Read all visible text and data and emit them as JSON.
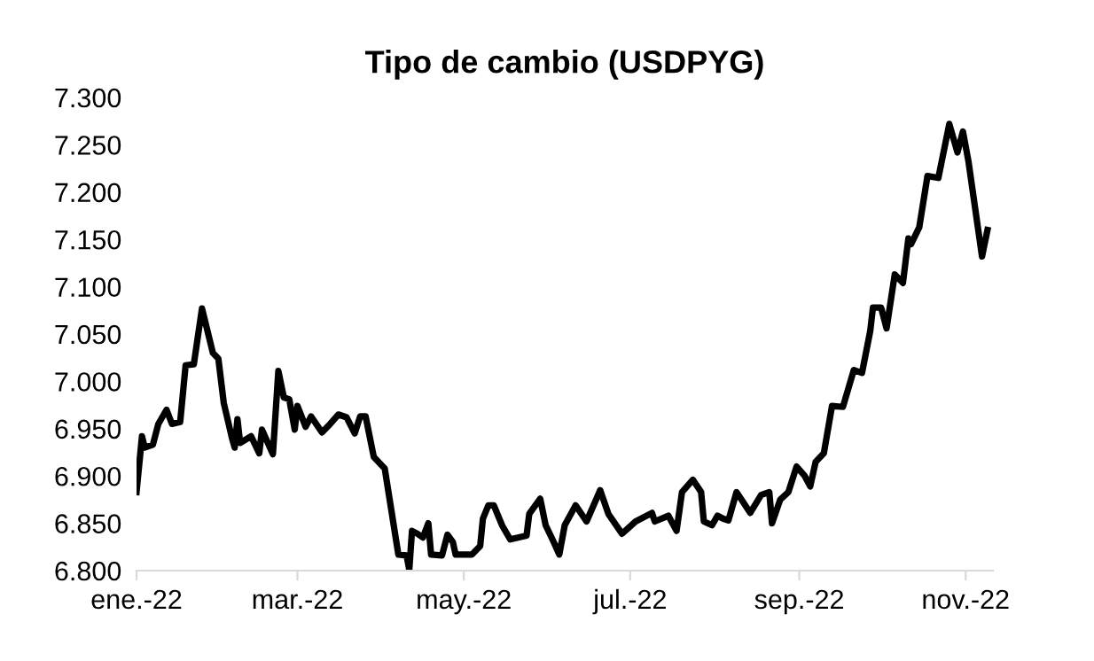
{
  "chart_data": {
    "type": "line",
    "title": "Tipo de cambio (USDPYG)",
    "x": [
      "2022-01-01",
      "2022-01-03",
      "2022-01-04",
      "2022-01-07",
      "2022-01-09",
      "2022-01-12",
      "2022-01-14",
      "2022-01-17",
      "2022-01-19",
      "2022-01-22",
      "2022-01-25",
      "2022-01-29",
      "2022-01-31",
      "2022-02-02",
      "2022-02-05",
      "2022-02-06",
      "2022-02-07",
      "2022-02-08",
      "2022-02-12",
      "2022-02-15",
      "2022-02-16",
      "2022-02-20",
      "2022-02-22",
      "2022-02-24",
      "2022-02-26",
      "2022-02-28",
      "2022-03-01",
      "2022-03-04",
      "2022-03-06",
      "2022-03-10",
      "2022-03-13",
      "2022-03-16",
      "2022-03-19",
      "2022-03-22",
      "2022-03-24",
      "2022-03-26",
      "2022-03-29",
      "2022-04-02",
      "2022-04-07",
      "2022-04-10",
      "2022-04-11",
      "2022-04-12",
      "2022-04-14",
      "2022-04-16",
      "2022-04-18",
      "2022-04-19",
      "2022-04-23",
      "2022-04-25",
      "2022-04-27",
      "2022-04-28",
      "2022-05-04",
      "2022-05-07",
      "2022-05-08",
      "2022-05-10",
      "2022-05-12",
      "2022-05-15",
      "2022-05-18",
      "2022-05-24",
      "2022-05-25",
      "2022-05-29",
      "2022-05-31",
      "2022-06-03",
      "2022-06-05",
      "2022-06-07",
      "2022-06-11",
      "2022-06-15",
      "2022-06-20",
      "2022-06-23",
      "2022-06-28",
      "2022-07-03",
      "2022-07-09",
      "2022-07-10",
      "2022-07-15",
      "2022-07-18",
      "2022-07-20",
      "2022-07-24",
      "2022-07-27",
      "2022-07-28",
      "2022-07-31",
      "2022-08-02",
      "2022-08-04",
      "2022-08-06",
      "2022-08-09",
      "2022-08-14",
      "2022-08-18",
      "2022-08-21",
      "2022-08-22",
      "2022-08-25",
      "2022-08-28",
      "2022-08-31",
      "2022-09-03",
      "2022-09-05",
      "2022-09-07",
      "2022-09-10",
      "2022-09-13",
      "2022-09-17",
      "2022-09-21",
      "2022-09-24",
      "2022-09-27",
      "2022-09-28",
      "2022-10-01",
      "2022-10-03",
      "2022-10-06",
      "2022-10-09",
      "2022-10-11",
      "2022-10-12",
      "2022-10-15",
      "2022-10-18",
      "2022-10-22",
      "2022-10-26",
      "2022-10-29",
      "2022-10-31",
      "2022-11-02",
      "2022-11-07",
      "2022-11-09"
    ],
    "series": [
      {
        "color": "#000000",
        "values": [
          6.883,
          6.942,
          6.93,
          6.933,
          6.955,
          6.97,
          6.955,
          6.957,
          7.017,
          7.018,
          7.077,
          7.03,
          7.024,
          6.977,
          6.94,
          6.93,
          6.96,
          6.935,
          6.942,
          6.924,
          6.949,
          6.923,
          7.011,
          6.983,
          6.981,
          6.949,
          6.974,
          6.952,
          6.963,
          6.946,
          6.955,
          6.965,
          6.962,
          6.945,
          6.963,
          6.963,
          6.92,
          6.908,
          6.817,
          6.816,
          6.801,
          6.842,
          6.839,
          6.835,
          6.85,
          6.817,
          6.816,
          6.838,
          6.83,
          6.817,
          6.817,
          6.826,
          6.855,
          6.869,
          6.869,
          6.848,
          6.833,
          6.837,
          6.86,
          6.876,
          6.848,
          6.83,
          6.817,
          6.848,
          6.869,
          6.852,
          6.885,
          6.86,
          6.839,
          6.852,
          6.861,
          6.852,
          6.858,
          6.842,
          6.883,
          6.896,
          6.883,
          6.852,
          6.848,
          6.858,
          6.855,
          6.853,
          6.883,
          6.861,
          6.88,
          6.883,
          6.85,
          6.875,
          6.883,
          6.91,
          6.9,
          6.889,
          6.915,
          6.924,
          6.974,
          6.973,
          7.012,
          7.009,
          7.053,
          7.078,
          7.078,
          7.056,
          7.113,
          7.104,
          7.151,
          7.145,
          7.163,
          7.217,
          7.215,
          7.272,
          7.242,
          7.264,
          7.233,
          7.132,
          7.16
        ]
      }
    ],
    "xlim": [
      "2022-01-01",
      "2022-11-11"
    ],
    "xticks": [
      {
        "value": "2022-01-01",
        "label": "ene.-22"
      },
      {
        "value": "2022-03-01",
        "label": "mar.-22"
      },
      {
        "value": "2022-05-01",
        "label": "may.-22"
      },
      {
        "value": "2022-07-01",
        "label": "jul.-22"
      },
      {
        "value": "2022-09-01",
        "label": "sep.-22"
      },
      {
        "value": "2022-11-01",
        "label": "nov.-22"
      }
    ],
    "ylim": [
      6.8,
      7.3
    ],
    "yticks": [
      {
        "value": 6.8,
        "label": "6.800"
      },
      {
        "value": 6.85,
        "label": "6.850"
      },
      {
        "value": 6.9,
        "label": "6.900"
      },
      {
        "value": 6.95,
        "label": "6.950"
      },
      {
        "value": 7.0,
        "label": "7.000"
      },
      {
        "value": 7.05,
        "label": "7.050"
      },
      {
        "value": 7.1,
        "label": "7.100"
      },
      {
        "value": 7.15,
        "label": "7.150"
      },
      {
        "value": 7.2,
        "label": "7.200"
      },
      {
        "value": 7.25,
        "label": "7.250"
      },
      {
        "value": 7.3,
        "label": "7.300"
      }
    ],
    "grid": false,
    "line_style": "solid"
  }
}
